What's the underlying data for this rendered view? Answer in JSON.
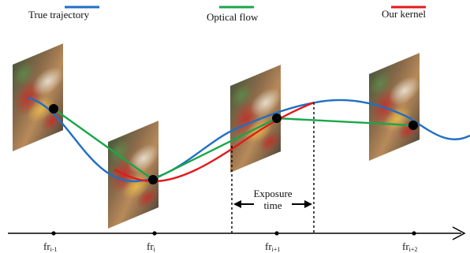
{
  "legend": {
    "true_trajectory": {
      "label": "True trajectory",
      "color": "#1f6fc4"
    },
    "optical_flow": {
      "label": "Optical flow",
      "color": "#1aa64a"
    },
    "our_kernel": {
      "label": "Our kernel",
      "color": "#e3191c"
    }
  },
  "frames": [
    {
      "base": "fr",
      "sub": "i-1"
    },
    {
      "base": "fr",
      "sub": "i"
    },
    {
      "base": "fr",
      "sub": "i+1"
    },
    {
      "base": "fr",
      "sub": "i+2"
    }
  ],
  "exposure": {
    "line1": "Exposure",
    "line2": "time"
  },
  "icons": {
    "frame_image": "blurry-photo-thumbnail-icon",
    "frame_point": "black-dot-icon",
    "axis_arrow": "arrow-right-icon"
  }
}
